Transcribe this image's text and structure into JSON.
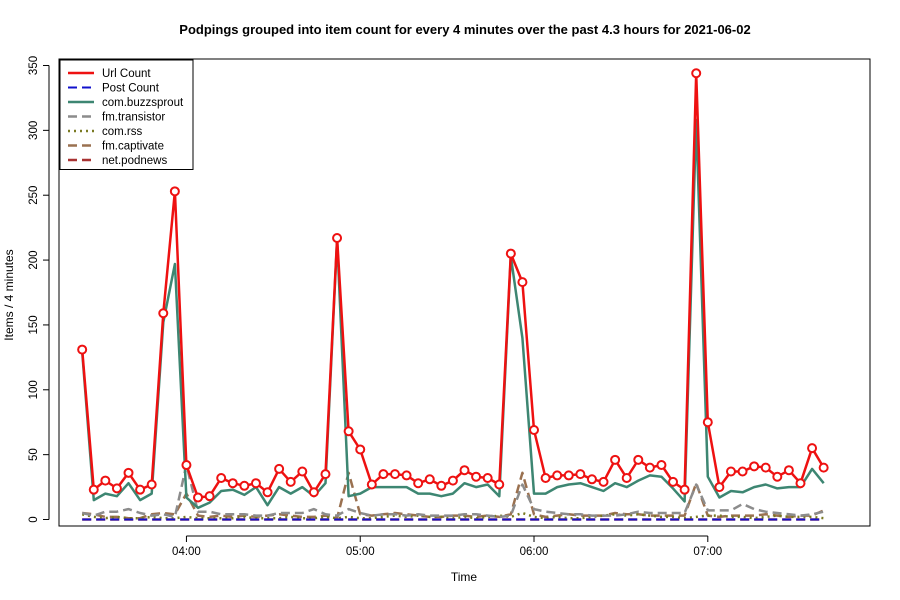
{
  "chart_data": {
    "type": "line",
    "title": "Podpings grouped into item count for every 4 minutes  over the past 4.3 hours for 2021-06-02",
    "xlabel": "Time",
    "ylabel": "Items / 4 minutes",
    "x_start": "03:24",
    "interval_minutes": 4,
    "xlim": [
      "03:16",
      "07:56"
    ],
    "ylim": [
      -5,
      355
    ],
    "y_ticks": [
      0,
      50,
      100,
      150,
      200,
      250,
      300,
      350
    ],
    "x_ticks": [
      "04:00",
      "05:00",
      "06:00",
      "07:00"
    ],
    "legend_position": "top-left",
    "series": [
      {
        "name": "Url Count",
        "color": "#ee1111",
        "style": "solid",
        "width": 2.5,
        "markers": true,
        "values": [
          131,
          23,
          30,
          24,
          36,
          23,
          27,
          159,
          253,
          42,
          17,
          18,
          32,
          28,
          26,
          28,
          21,
          39,
          29,
          37,
          21,
          35,
          217,
          68,
          54,
          27,
          35,
          35,
          34,
          28,
          31,
          26,
          30,
          38,
          33,
          32,
          27,
          205,
          183,
          69,
          32,
          34,
          34,
          35,
          31,
          29,
          46,
          32,
          46,
          40,
          42,
          29,
          23,
          344,
          75,
          25,
          37,
          37,
          41,
          40,
          33,
          38,
          28,
          55,
          40
        ]
      },
      {
        "name": "Post Count",
        "color": "#1111cc",
        "style": "dashed",
        "width": 2,
        "markers": false,
        "values": [
          0,
          0,
          0,
          0,
          0,
          0,
          0,
          0,
          0,
          0,
          0,
          0,
          0,
          0,
          0,
          0,
          0,
          0,
          0,
          0,
          0,
          0,
          0,
          0,
          0,
          0,
          0,
          0,
          0,
          0,
          0,
          0,
          0,
          0,
          0,
          0,
          0,
          0,
          0,
          0,
          0,
          0,
          0,
          0,
          0,
          0,
          0,
          0,
          0,
          0,
          0,
          0,
          0,
          0,
          0,
          0,
          0,
          0,
          0,
          0,
          0,
          0,
          0,
          0,
          0
        ]
      },
      {
        "name": "com.buzzsprout",
        "color": "#3d8672",
        "style": "solid",
        "width": 2.5,
        "markers": false,
        "values": [
          129,
          15,
          20,
          18,
          28,
          15,
          20,
          152,
          197,
          17,
          9,
          13,
          22,
          23,
          19,
          25,
          11,
          25,
          20,
          25,
          18,
          28,
          216,
          18,
          20,
          25,
          25,
          25,
          25,
          20,
          20,
          18,
          20,
          28,
          25,
          27,
          18,
          203,
          140,
          20,
          20,
          25,
          27,
          28,
          25,
          22,
          28,
          25,
          30,
          34,
          33,
          24,
          14,
          308,
          33,
          17,
          22,
          21,
          25,
          27,
          24,
          25,
          25,
          39,
          28
        ]
      },
      {
        "name": "fm.transistor",
        "color": "#8c8c8c",
        "style": "dashed",
        "width": 2.5,
        "markers": false,
        "values": [
          5,
          3,
          6,
          6,
          8,
          5,
          3,
          4,
          2,
          42,
          6,
          6,
          4,
          4,
          4,
          3,
          3,
          5,
          5,
          5,
          8,
          4,
          3,
          8,
          5,
          3,
          4,
          4,
          3,
          4,
          3,
          3,
          3,
          4,
          4,
          3,
          2,
          3,
          27,
          8,
          6,
          5,
          4,
          4,
          3,
          3,
          3,
          4,
          6,
          5,
          5,
          5,
          5,
          27,
          7,
          7,
          7,
          12,
          8,
          6,
          5,
          4,
          3,
          4,
          6
        ]
      },
      {
        "name": "com.rss",
        "color": "#7a7a22",
        "style": "dotted",
        "width": 2.5,
        "markers": false,
        "values": [
          4,
          2,
          1,
          2,
          1,
          1,
          2,
          1,
          1,
          2,
          1,
          1,
          1,
          1,
          2,
          1,
          1,
          1,
          2,
          1,
          1,
          2,
          1,
          2,
          1,
          1,
          2,
          3,
          2,
          3,
          2,
          2,
          1,
          2,
          1,
          2,
          3,
          2,
          5,
          2,
          1,
          2,
          1,
          1,
          2,
          3,
          4,
          3,
          4,
          3,
          2,
          2,
          1,
          2,
          3,
          3,
          2,
          2,
          1,
          2,
          3,
          2,
          2,
          2,
          1
        ]
      },
      {
        "name": "fm.captivate",
        "color": "#9a7150",
        "style": "dashed",
        "width": 2.5,
        "markers": false,
        "values": [
          5,
          4,
          2,
          2,
          1,
          1,
          4,
          5,
          4,
          20,
          3,
          2,
          3,
          2,
          3,
          2,
          3,
          4,
          3,
          2,
          2,
          3,
          1,
          36,
          4,
          3,
          4,
          5,
          4,
          3,
          2,
          2,
          3,
          3,
          2,
          3,
          2,
          4,
          36,
          4,
          2,
          3,
          4,
          3,
          3,
          3,
          5,
          4,
          4,
          3,
          3,
          3,
          3,
          28,
          3,
          2,
          3,
          3,
          3,
          4,
          3,
          2,
          3,
          3,
          7
        ]
      },
      {
        "name": "net.podnews",
        "color": "#a83232",
        "style": "dashed",
        "width": 2.5,
        "markers": false,
        "values": [
          0,
          0,
          0,
          0,
          0,
          0,
          0,
          0,
          0,
          0,
          0,
          0,
          0,
          0,
          0,
          0,
          0,
          0,
          0,
          0,
          0,
          0,
          0,
          0,
          0,
          0,
          0,
          0,
          0,
          0,
          0,
          0,
          0,
          0,
          0,
          0,
          0,
          0,
          0,
          0,
          0,
          0,
          0,
          0,
          0,
          0,
          0,
          0,
          0,
          0,
          0,
          0,
          0,
          0,
          0,
          0,
          0,
          0,
          0,
          0,
          0,
          0,
          0,
          0,
          0
        ]
      }
    ]
  }
}
